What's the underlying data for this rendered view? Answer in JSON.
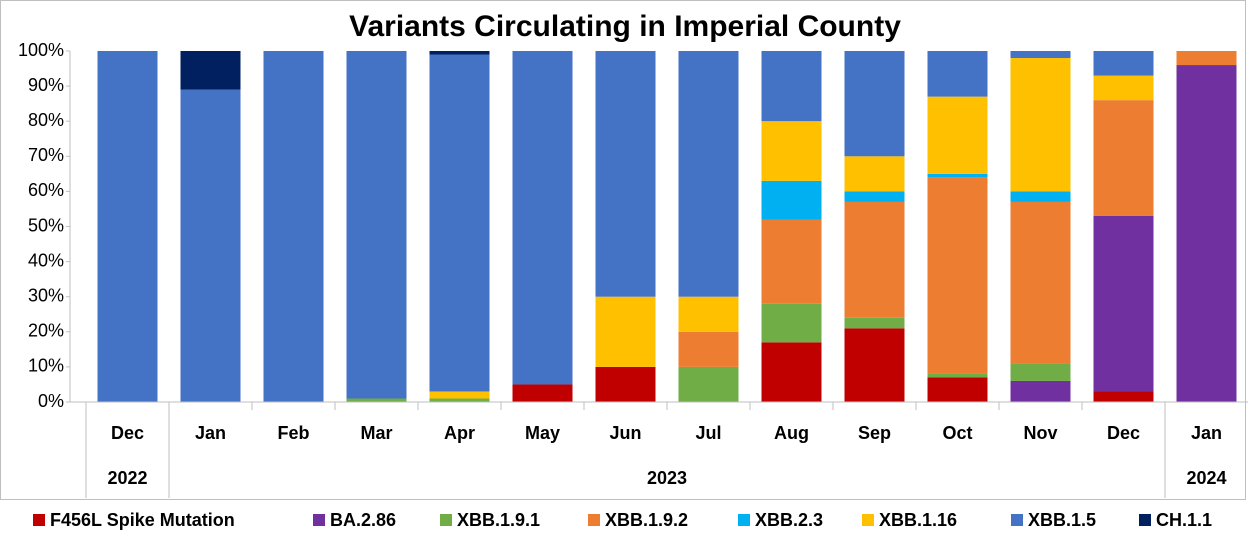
{
  "chart_data": {
    "type": "stacked_bar",
    "title": "Variants Circulating in Imperial County",
    "categories": [
      "Dec",
      "Jan",
      "Feb",
      "Mar",
      "Apr",
      "May",
      "Jun",
      "Jul",
      "Aug",
      "Sep",
      "Oct",
      "Nov",
      "Dec",
      "Jan"
    ],
    "x_groups": [
      {
        "label": "2022",
        "count": 1
      },
      {
        "label": "2023",
        "count": 12
      },
      {
        "label": "2024",
        "count": 1
      }
    ],
    "series": [
      {
        "name": "F456L Spike Mutation",
        "color": "#c00000",
        "values": [
          0,
          0,
          0,
          0,
          0,
          5,
          10,
          0,
          17,
          21,
          7,
          0,
          3,
          0
        ]
      },
      {
        "name": "BA.2.86",
        "color": "#7030a0",
        "values": [
          0,
          0,
          0,
          0,
          0,
          0,
          0,
          0,
          0,
          0,
          0,
          6,
          50,
          96
        ]
      },
      {
        "name": "XBB.1.9.1",
        "color": "#70ad47",
        "values": [
          0,
          0,
          0,
          1,
          1,
          0,
          0,
          10,
          11,
          3,
          1,
          5,
          0,
          0
        ]
      },
      {
        "name": "XBB.1.9.2",
        "color": "#ed7d31",
        "values": [
          0,
          0,
          0,
          0,
          0,
          0,
          0,
          10,
          24,
          33,
          56,
          46,
          33,
          4
        ]
      },
      {
        "name": "XBB.2.3",
        "color": "#00b0f0",
        "values": [
          0,
          0,
          0,
          0,
          0,
          0,
          0,
          0,
          11,
          3,
          1,
          3,
          0,
          0
        ]
      },
      {
        "name": "XBB.1.16",
        "color": "#ffc000",
        "values": [
          0,
          0,
          0,
          0,
          2,
          0,
          20,
          10,
          17,
          10,
          22,
          38,
          7,
          0
        ]
      },
      {
        "name": "XBB.1.5",
        "color": "#4472c4",
        "values": [
          100,
          89,
          100,
          99,
          96,
          95,
          70,
          70,
          20,
          30,
          13,
          2,
          7,
          0
        ]
      },
      {
        "name": "CH.1.1",
        "color": "#002060",
        "values": [
          0,
          11,
          0,
          0,
          1,
          0,
          0,
          0,
          0,
          0,
          0,
          0,
          0,
          0
        ]
      }
    ],
    "ylim": [
      0,
      100
    ],
    "yticks": [
      {
        "value": 0,
        "label": "0%"
      },
      {
        "value": 10,
        "label": "10%"
      },
      {
        "value": 20,
        "label": "20%"
      },
      {
        "value": 30,
        "label": "30%"
      },
      {
        "value": 40,
        "label": "40%"
      },
      {
        "value": 50,
        "label": "50%"
      },
      {
        "value": 60,
        "label": "60%"
      },
      {
        "value": 70,
        "label": "70%"
      },
      {
        "value": 80,
        "label": "80%"
      },
      {
        "value": 90,
        "label": "90%"
      },
      {
        "value": 100,
        "label": "100%"
      }
    ],
    "grid": false,
    "legend": "bottom"
  }
}
